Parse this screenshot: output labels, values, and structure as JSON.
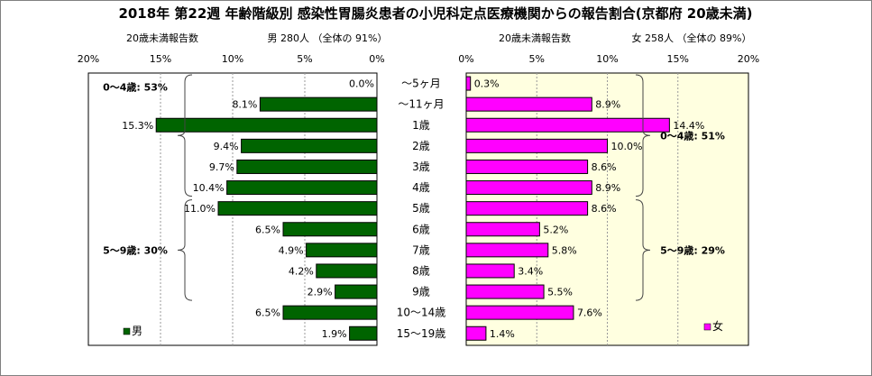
{
  "chart_data": {
    "type": "bar",
    "title": "2018年 第22週 年齢階級別 感染性胃腸炎患者の小児科定点医療機関からの報告割合(京都府 20歳未満)",
    "categories": [
      "～5ヶ月",
      "～11ヶ月",
      "1歳",
      "2歳",
      "3歳",
      "4歳",
      "5歳",
      "6歳",
      "7歳",
      "8歳",
      "9歳",
      "10～14歳",
      "15～19歳"
    ],
    "panels": [
      {
        "side": "left",
        "header_left": "20歳未満報告数",
        "header_right": "男 280人 （全体の 91%）",
        "xlim": [
          0,
          20
        ],
        "xticks": [
          "20%",
          "15%",
          "10%",
          "5%",
          "0%"
        ],
        "tick_values": [
          20,
          15,
          10,
          5,
          0
        ],
        "series": [
          {
            "name": "男",
            "color": "#006400",
            "values": [
              0.0,
              8.1,
              15.3,
              9.4,
              9.7,
              10.4,
              11.0,
              6.5,
              4.9,
              4.2,
              2.9,
              6.5,
              1.9
            ],
            "labels": [
              "0.0%",
              "8.1%",
              "15.3%",
              "9.4%",
              "9.7%",
              "10.4%",
              "11.0%",
              "6.5%",
              "4.9%",
              "4.2%",
              "2.9%",
              "6.5%",
              "1.9%"
            ]
          }
        ],
        "braces": [
          {
            "label": "0～4歳: 53%",
            "from": 0,
            "to": 5
          },
          {
            "label": "5～9歳: 30%",
            "from": 6,
            "to": 10
          }
        ],
        "background": "#ffffff"
      },
      {
        "side": "right",
        "header_left": "20歳未満報告数",
        "header_right": "女 258人 （全体の 89%）",
        "xlim": [
          0,
          20
        ],
        "xticks": [
          "0%",
          "5%",
          "10%",
          "15%",
          "20%"
        ],
        "tick_values": [
          0,
          5,
          10,
          15,
          20
        ],
        "series": [
          {
            "name": "女",
            "color": "#ff00ff",
            "values": [
              0.3,
              8.9,
              14.4,
              10.0,
              8.6,
              8.9,
              8.6,
              5.2,
              5.8,
              3.4,
              5.5,
              7.6,
              1.4
            ],
            "labels": [
              "0.3%",
              "8.9%",
              "14.4%",
              "10.0%",
              "8.6%",
              "8.9%",
              "8.6%",
              "5.2%",
              "5.8%",
              "3.4%",
              "5.5%",
              "7.6%",
              "1.4%"
            ]
          }
        ],
        "braces": [
          {
            "label": "0～4歳: 51%",
            "from": 0,
            "to": 5
          },
          {
            "label": "5～9歳: 29%",
            "from": 6,
            "to": 10
          }
        ],
        "background": "#ffffe0"
      }
    ],
    "grid": "vertical-dotted",
    "legend_placement": "bottom-left (male), bottom-right (female)"
  }
}
